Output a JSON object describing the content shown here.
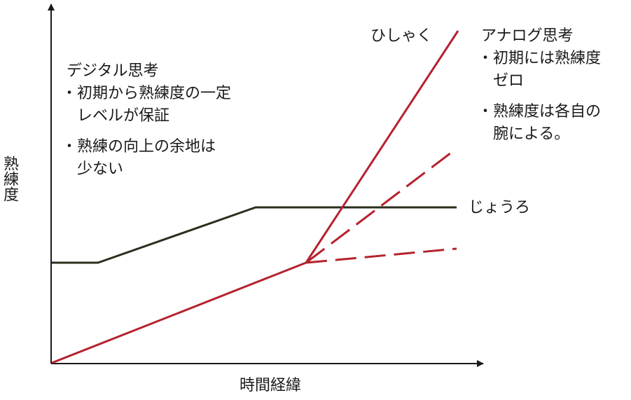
{
  "axes": {
    "x_label": "時間経緯",
    "y_label": "熟練度"
  },
  "series": {
    "watering_can": {
      "label": "じょうろ",
      "color": "#2b2f1e"
    },
    "ladle": {
      "label": "ひしゃく",
      "color": "#b5222e"
    }
  },
  "notes": {
    "digital": {
      "title": "デジタル思考",
      "lines": [
        "・初期から熟練度の一定",
        "　レベルが保証",
        "・熟練の向上の余地は",
        "　少ない"
      ]
    },
    "analog": {
      "title": "アナログ思考",
      "lines": [
        "・初期には熟練度",
        "　ゼロ",
        "・熟練度は各自の",
        "　腕による。"
      ]
    }
  }
}
